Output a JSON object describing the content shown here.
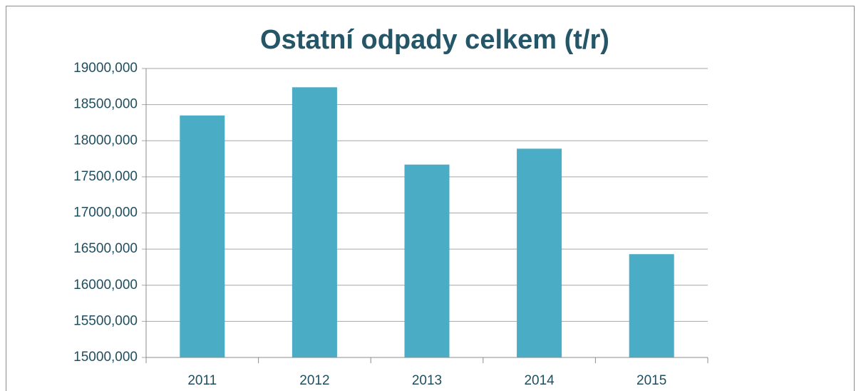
{
  "chart_data": {
    "type": "bar",
    "title": "Ostatní odpady celkem (t/r)",
    "categories": [
      "2011",
      "2012",
      "2013",
      "2014",
      "2015"
    ],
    "values": [
      18350,
      18740,
      17670,
      17890,
      16430
    ],
    "color": "#4bacc6",
    "ylim": [
      15000,
      19000
    ],
    "yticks": [
      {
        "value": 15000,
        "label": "15000,000"
      },
      {
        "value": 15500,
        "label": "15500,000"
      },
      {
        "value": 16000,
        "label": "16000,000"
      },
      {
        "value": 16500,
        "label": "16500,000"
      },
      {
        "value": 17000,
        "label": "17000,000"
      },
      {
        "value": 17500,
        "label": "17500,000"
      },
      {
        "value": 18000,
        "label": "18000,000"
      },
      {
        "value": 18500,
        "label": "18500,000"
      },
      {
        "value": 19000,
        "label": "19000,000"
      }
    ],
    "grid": true
  }
}
